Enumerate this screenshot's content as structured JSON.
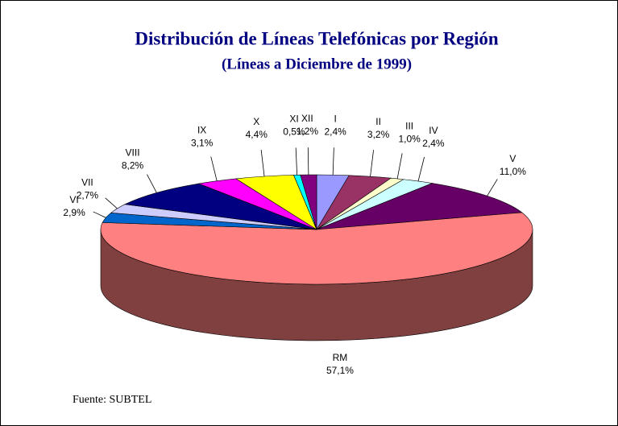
{
  "chart_data": {
    "type": "pie",
    "title": "Distribución de Líneas Telefónicas por Región",
    "subtitle": "(Líneas a Diciembre de 1999)",
    "source": "Fuente:  SUBTEL",
    "categories": [
      "I",
      "II",
      "III",
      "IV",
      "V",
      "RM",
      "VI",
      "VII",
      "VIII",
      "IX",
      "X",
      "XI",
      "XII"
    ],
    "values": [
      2.4,
      3.2,
      1.0,
      2.4,
      11.0,
      57.1,
      2.9,
      2.7,
      8.2,
      3.1,
      4.4,
      0.5,
      1.2
    ],
    "value_labels": [
      "2,4%",
      "3,2%",
      "1,0%",
      "2,4%",
      "11,0%",
      "57,1%",
      "2,9%",
      "2,7%",
      "8,2%",
      "3,1%",
      "4,4%",
      "0,5%",
      "1,2%"
    ],
    "colors": [
      "#9999ff",
      "#993366",
      "#ffffcc",
      "#ccffff",
      "#660066",
      "#ff8080",
      "#0066cc",
      "#ccccff",
      "#000080",
      "#ff00ff",
      "#ffff00",
      "#00ffff",
      "#800080"
    ]
  }
}
